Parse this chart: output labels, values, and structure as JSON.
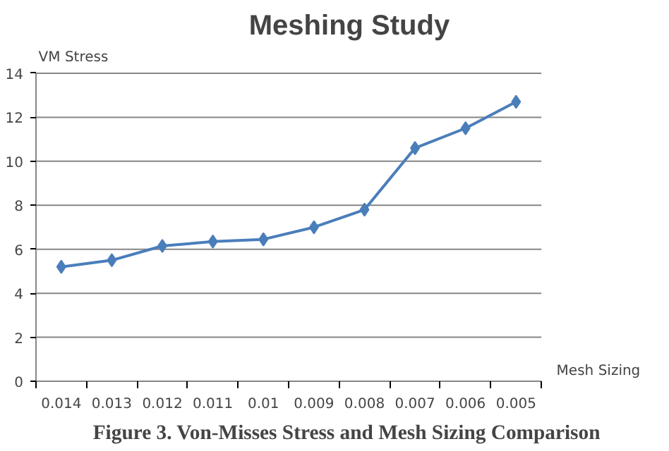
{
  "chart_data": {
    "type": "line",
    "title": "Meshing Study",
    "ylabel": "VM Stress",
    "xlabel": "Mesh Sizing",
    "categories": [
      "0.014",
      "0.013",
      "0.012",
      "0.011",
      "0.01",
      "0.009",
      "0.008",
      "0.007",
      "0.006",
      "0.005"
    ],
    "series": [
      {
        "color": "#4a7ebb",
        "values": [
          5.2,
          5.5,
          6.15,
          6.35,
          6.45,
          7.0,
          7.8,
          10.6,
          11.5,
          12.7
        ]
      }
    ],
    "ylim": [
      0,
      14
    ],
    "yticks": [
      0,
      2,
      4,
      6,
      8,
      10,
      12,
      14
    ],
    "grid": "y",
    "marker": "diamond",
    "line_style": "solid",
    "annotations": [
      "Figure 3.  Von-Misses Stress and Mesh Sizing Comparison"
    ]
  }
}
